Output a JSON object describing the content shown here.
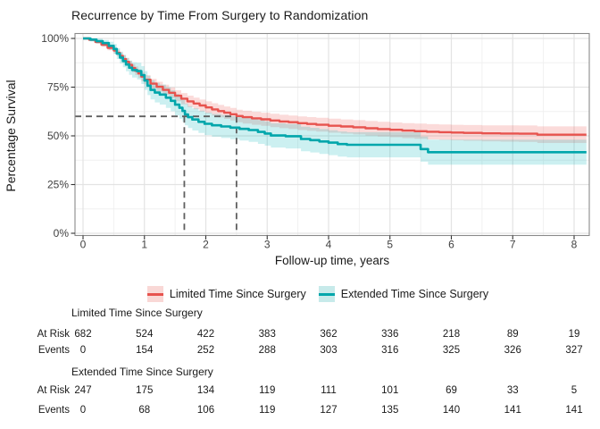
{
  "chart_data": {
    "type": "line",
    "subtype": "kaplan-meier-step",
    "title": "Recurrence by Time From Surgery to Randomization",
    "xlabel": "Follow-up time, years",
    "ylabel": "Percentage Survival",
    "x_axis": {
      "ticks": [
        0,
        1,
        2,
        3,
        4,
        5,
        6,
        7,
        8
      ],
      "minor_ticks": [
        0.5,
        1.5,
        2.5,
        3.5,
        4.5,
        5.5,
        6.5,
        7.5
      ],
      "range": [
        -0.13,
        8.35
      ]
    },
    "y_axis": {
      "ticks_pct": [
        0,
        25,
        50,
        75,
        100
      ],
      "tick_labels": [
        "0%",
        "25%",
        "50%",
        "75%",
        "100%"
      ],
      "minor_ticks_pct": [
        12.5,
        37.5,
        62.5,
        87.5
      ],
      "range_pct": [
        0,
        100
      ]
    },
    "grid": true,
    "legend_position": "bottom",
    "series": [
      {
        "name": "Limited Time Since Surgery",
        "color": "#E7534E",
        "band_fill": "rgba(235,90,85,0.22)",
        "steps": [
          [
            0,
            100
          ],
          [
            0.1,
            99.3
          ],
          [
            0.2,
            98.2
          ],
          [
            0.3,
            96.8
          ],
          [
            0.4,
            95.2
          ],
          [
            0.5,
            93.8
          ],
          [
            0.55,
            92.6
          ],
          [
            0.6,
            91.0
          ],
          [
            0.65,
            89.4
          ],
          [
            0.7,
            88.0
          ],
          [
            0.75,
            86.4
          ],
          [
            0.8,
            84.8
          ],
          [
            0.85,
            83.4
          ],
          [
            0.9,
            82.0
          ],
          [
            0.95,
            80.4
          ],
          [
            1.0,
            78.8
          ],
          [
            1.1,
            76.8
          ],
          [
            1.2,
            75.2
          ],
          [
            1.3,
            73.6
          ],
          [
            1.4,
            72.1
          ],
          [
            1.5,
            70.6
          ],
          [
            1.6,
            69.1
          ],
          [
            1.7,
            67.7
          ],
          [
            1.8,
            66.6
          ],
          [
            1.9,
            65.6
          ],
          [
            2.0,
            64.6
          ],
          [
            2.1,
            63.6
          ],
          [
            2.2,
            62.7
          ],
          [
            2.3,
            61.9
          ],
          [
            2.4,
            61.1
          ],
          [
            2.5,
            60.2
          ],
          [
            2.6,
            59.6
          ],
          [
            2.75,
            59.0
          ],
          [
            2.9,
            58.5
          ],
          [
            3.05,
            57.9
          ],
          [
            3.2,
            57.4
          ],
          [
            3.35,
            57.0
          ],
          [
            3.5,
            56.5
          ],
          [
            3.65,
            56.1
          ],
          [
            3.8,
            55.7
          ],
          [
            4.0,
            55.2
          ],
          [
            4.2,
            54.8
          ],
          [
            4.4,
            54.4
          ],
          [
            4.6,
            53.9
          ],
          [
            4.8,
            53.5
          ],
          [
            5.0,
            53.1
          ],
          [
            5.2,
            52.7
          ],
          [
            5.4,
            52.4
          ],
          [
            5.6,
            52.1
          ],
          [
            5.8,
            51.9
          ],
          [
            6.0,
            51.7
          ],
          [
            6.2,
            51.5
          ],
          [
            6.5,
            51.3
          ],
          [
            6.8,
            51.2
          ],
          [
            7.1,
            51.1
          ],
          [
            7.4,
            50.6
          ],
          [
            8.2,
            50.6
          ]
        ],
        "ci_halfwidth_pct": [
          [
            0,
            0.4
          ],
          [
            0.3,
            1.0
          ],
          [
            0.6,
            1.8
          ],
          [
            1,
            2.4
          ],
          [
            1.5,
            2.8
          ],
          [
            2,
            3.1
          ],
          [
            3,
            3.4
          ],
          [
            4,
            3.6
          ],
          [
            5,
            3.8
          ],
          [
            6,
            4.0
          ],
          [
            7,
            4.2
          ],
          [
            8.2,
            4.4
          ]
        ]
      },
      {
        "name": "Extended Time Since Surgery",
        "color": "#00A6AB",
        "band_fill": "rgba(0,180,185,0.20)",
        "steps": [
          [
            0,
            100
          ],
          [
            0.12,
            99.4
          ],
          [
            0.22,
            98.6
          ],
          [
            0.32,
            97.6
          ],
          [
            0.42,
            96.2
          ],
          [
            0.5,
            94.6
          ],
          [
            0.55,
            92.2
          ],
          [
            0.6,
            90.2
          ],
          [
            0.65,
            88.4
          ],
          [
            0.7,
            86.6
          ],
          [
            0.75,
            85.0
          ],
          [
            0.8,
            83.8
          ],
          [
            0.88,
            83.2
          ],
          [
            0.95,
            81.2
          ],
          [
            1.0,
            78.4
          ],
          [
            1.05,
            75.8
          ],
          [
            1.1,
            73.6
          ],
          [
            1.17,
            72.2
          ],
          [
            1.25,
            71.2
          ],
          [
            1.35,
            69.6
          ],
          [
            1.43,
            68.0
          ],
          [
            1.5,
            66.0
          ],
          [
            1.57,
            64.4
          ],
          [
            1.62,
            62.8
          ],
          [
            1.66,
            61.0
          ],
          [
            1.71,
            59.6
          ],
          [
            1.78,
            58.4
          ],
          [
            1.88,
            57.2
          ],
          [
            1.98,
            56.2
          ],
          [
            2.1,
            55.4
          ],
          [
            2.25,
            54.8
          ],
          [
            2.4,
            54.2
          ],
          [
            2.55,
            53.6
          ],
          [
            2.7,
            53.0
          ],
          [
            2.85,
            52.0
          ],
          [
            2.96,
            51.2
          ],
          [
            3.06,
            50.2
          ],
          [
            3.3,
            49.8
          ],
          [
            3.55,
            48.4
          ],
          [
            3.7,
            47.8
          ],
          [
            3.85,
            47.1
          ],
          [
            4.0,
            46.5
          ],
          [
            4.15,
            45.8
          ],
          [
            4.3,
            45.4
          ],
          [
            5.5,
            43.2
          ],
          [
            5.62,
            41.6
          ],
          [
            8.2,
            41.6
          ]
        ],
        "ci_halfwidth_pct": [
          [
            0,
            0.6
          ],
          [
            0.3,
            1.5
          ],
          [
            0.6,
            3.0
          ],
          [
            1,
            4.8
          ],
          [
            1.5,
            5.5
          ],
          [
            2,
            5.8
          ],
          [
            3,
            6.2
          ],
          [
            4,
            6.4
          ],
          [
            5,
            6.6
          ],
          [
            6,
            6.3
          ],
          [
            7,
            6.2
          ],
          [
            8.2,
            6.2
          ]
        ]
      }
    ],
    "reference_lines": {
      "survival_pct": 60,
      "times_years": [
        1.65,
        2.5
      ],
      "color": "#5f5f5f",
      "style": "dashed"
    }
  },
  "legend": {
    "items": [
      {
        "label": "Limited Time Since Surgery",
        "line_color": "#E7534E",
        "fill_color": "#F9D8D6"
      },
      {
        "label": "Extended Time Since Surgery",
        "line_color": "#00A6AB",
        "fill_color": "#C7EAEA"
      }
    ]
  },
  "risk_table": {
    "groups": [
      {
        "header": "Limited Time Since Surgery",
        "rows": [
          {
            "label": "At Risk",
            "values": [
              "682",
              "524",
              "422",
              "383",
              "362",
              "336",
              "218",
              "89",
              "19"
            ]
          },
          {
            "label": "Events",
            "values": [
              "0",
              "154",
              "252",
              "288",
              "303",
              "316",
              "325",
              "326",
              "327"
            ]
          }
        ]
      },
      {
        "header": "Extended Time Since Surgery",
        "rows": [
          {
            "label": "At Risk",
            "values": [
              "247",
              "175",
              "134",
              "119",
              "111",
              "101",
              "69",
              "33",
              "5"
            ]
          },
          {
            "label": "Events",
            "values": [
              "0",
              "68",
              "106",
              "119",
              "127",
              "135",
              "140",
              "141",
              "141"
            ]
          }
        ]
      }
    ]
  },
  "colors": {
    "grid_major": "#E3E3E3",
    "grid_minor": "#F0F0F0",
    "panel_border": "#8a8a8a",
    "tick_mark": "#333333",
    "tick_label": "#404040",
    "text": "#1a1a1a"
  }
}
